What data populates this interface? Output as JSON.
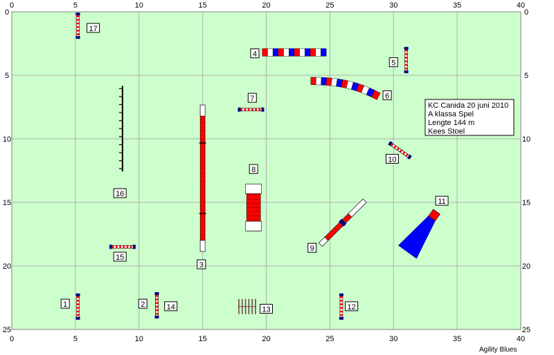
{
  "field": {
    "width_m": 40,
    "height_m": 25,
    "background": "#ccffcc",
    "grid_color": "#b0b0b0",
    "x_ticks": [
      "0",
      "5",
      "10",
      "15",
      "20",
      "25",
      "30",
      "35",
      "40"
    ],
    "y_ticks": [
      "0",
      "5",
      "10",
      "15",
      "20",
      "25"
    ]
  },
  "colors": {
    "red": "#ff0000",
    "blue": "#0000ff",
    "navy": "#000080",
    "black": "#000000",
    "white": "#ffffff"
  },
  "info_box": {
    "lines": [
      "KC Canida 20 juni 2010",
      "A klassa Spel",
      "Lengte 144 m",
      "Kees Stoel"
    ]
  },
  "credit": "Agility Blues",
  "obstacles": [
    {
      "number": "1",
      "type": "jump",
      "x": 5.2,
      "y": 23.2,
      "angle": 90
    },
    {
      "number": "2",
      "type": "jump",
      "x": 11.4,
      "y": 23.1,
      "angle": 90
    },
    {
      "number": "3",
      "type": "dogwalk",
      "x": 15.0,
      "y": 13.1,
      "angle": 90
    },
    {
      "number": "4",
      "type": "tunnel",
      "x": 22.2,
      "y": 3.2,
      "angle": 0
    },
    {
      "number": "5",
      "type": "jump",
      "x": 31.0,
      "y": 3.8,
      "angle": 90
    },
    {
      "number": "6",
      "type": "tunnel_curve",
      "x": 26.3,
      "y": 5.8
    },
    {
      "number": "7",
      "type": "jump",
      "x": 18.8,
      "y": 7.7,
      "angle": 0
    },
    {
      "number": "8",
      "type": "aframe",
      "x": 19.0,
      "y": 15.4,
      "angle": 90
    },
    {
      "number": "9",
      "type": "seesaw",
      "x": 26.0,
      "y": 16.6,
      "angle": -45
    },
    {
      "number": "10",
      "type": "jump",
      "x": 30.5,
      "y": 10.9,
      "angle": 35
    },
    {
      "number": "11",
      "type": "chute",
      "x": 31.6,
      "y": 16.9,
      "angle": 0
    },
    {
      "number": "12",
      "type": "jump",
      "x": 25.9,
      "y": 23.2,
      "angle": 90
    },
    {
      "number": "13",
      "type": "weave",
      "x": 18.5,
      "y": 23.2,
      "angle": 0
    },
    {
      "number": "14",
      "type": "jump",
      "x": 11.4,
      "y": 23.1,
      "angle": 90
    },
    {
      "number": "15",
      "type": "jump",
      "x": 8.7,
      "y": 18.5,
      "angle": 0
    },
    {
      "number": "16",
      "type": "weave_line",
      "x": 8.7,
      "y": 9.2,
      "angle": 90
    },
    {
      "number": "17",
      "type": "jump",
      "x": 5.2,
      "y": 1.1,
      "angle": 90
    }
  ],
  "labels": [
    {
      "number": "1",
      "x": 4.2,
      "y": 23.0
    },
    {
      "number": "2",
      "x": 10.3,
      "y": 23.0
    },
    {
      "number": "3",
      "x": 14.9,
      "y": 19.9
    },
    {
      "number": "4",
      "x": 19.1,
      "y": 3.3
    },
    {
      "number": "5",
      "x": 30.0,
      "y": 4.0
    },
    {
      "number": "6",
      "x": 29.5,
      "y": 6.6
    },
    {
      "number": "7",
      "x": 18.9,
      "y": 6.8
    },
    {
      "number": "8",
      "x": 19.0,
      "y": 12.4
    },
    {
      "number": "9",
      "x": 23.6,
      "y": 18.6
    },
    {
      "number": "10",
      "x": 29.9,
      "y": 11.6
    },
    {
      "number": "11",
      "x": 33.8,
      "y": 14.9
    },
    {
      "number": "12",
      "x": 26.7,
      "y": 23.2
    },
    {
      "number": "13",
      "x": 20.0,
      "y": 23.4
    },
    {
      "number": "14",
      "x": 12.5,
      "y": 23.2
    },
    {
      "number": "15",
      "x": 8.5,
      "y": 19.3
    },
    {
      "number": "16",
      "x": 8.5,
      "y": 14.3
    },
    {
      "number": "17",
      "x": 6.4,
      "y": 1.3
    }
  ]
}
